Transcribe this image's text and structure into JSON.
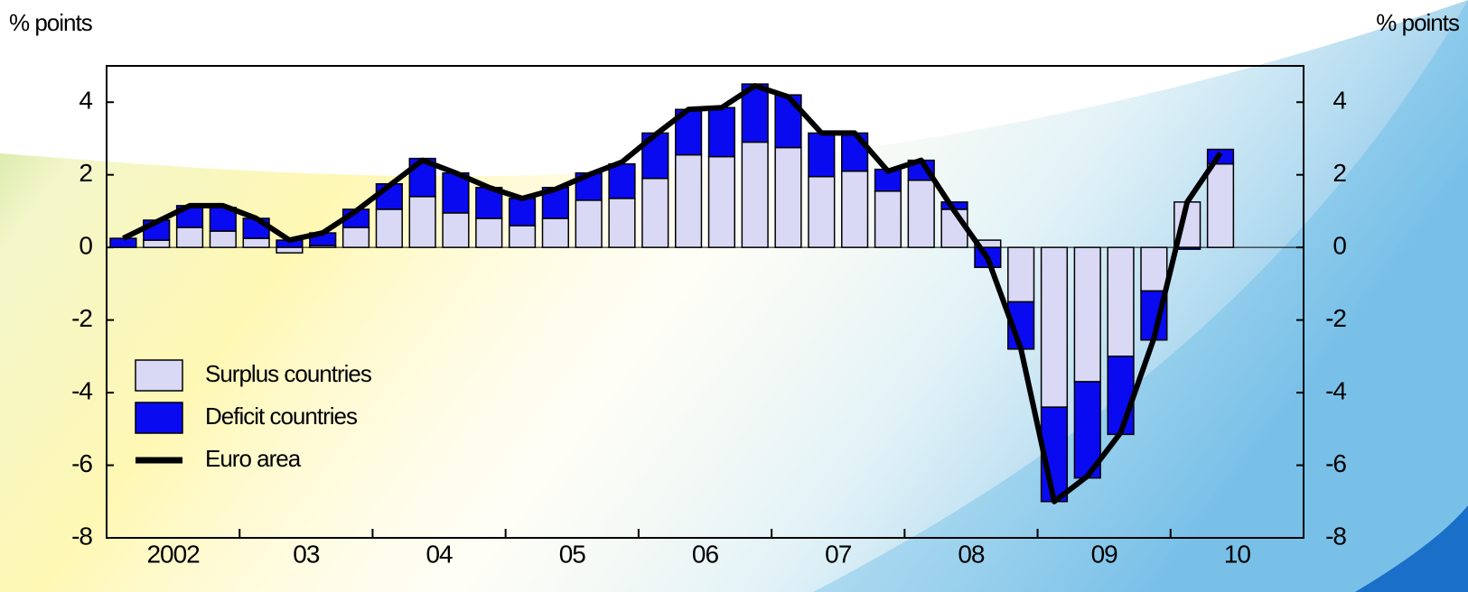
{
  "chart_data": {
    "type": "bar",
    "stacked": true,
    "y_axis_label": "% points",
    "y2_axis_label": "% points",
    "categories": [
      "2002",
      null,
      null,
      null,
      "03",
      null,
      null,
      null,
      "04",
      null,
      null,
      null,
      "05",
      null,
      null,
      null,
      "06",
      null,
      null,
      null,
      "07",
      null,
      null,
      null,
      "08",
      null,
      null,
      null,
      "09",
      null,
      null,
      null,
      "10",
      null,
      null,
      null
    ],
    "series": [
      {
        "name": "Surplus countries",
        "type": "bar",
        "color": "#d9d9f6",
        "values": [
          0,
          0.2,
          0.55,
          0.45,
          0.25,
          -0.15,
          0.05,
          0.55,
          1.05,
          1.4,
          0.95,
          0.8,
          0.6,
          0.8,
          1.3,
          1.35,
          1.9,
          2.55,
          2.5,
          2.9,
          2.75,
          1.95,
          2.1,
          1.55,
          1.85,
          1.05,
          0.2,
          -1.5,
          -4.4,
          -3.7,
          -3.0,
          -1.2,
          1.25,
          2.3,
          null,
          null
        ]
      },
      {
        "name": "Deficit countries",
        "type": "bar",
        "color": "#0a0af0",
        "values": [
          0.25,
          0.55,
          0.6,
          0.65,
          0.55,
          0.2,
          0.35,
          0.5,
          0.7,
          1.05,
          1.1,
          0.85,
          0.75,
          0.85,
          0.75,
          0.95,
          1.25,
          1.25,
          1.35,
          1.6,
          1.45,
          1.2,
          1.05,
          0.6,
          0.55,
          0.2,
          -0.55,
          -1.3,
          -2.6,
          -2.65,
          -2.15,
          -1.35,
          -0.05,
          0.4,
          null,
          null
        ]
      },
      {
        "name": "Euro area",
        "type": "line",
        "color": "#000000",
        "values": [
          0.25,
          0.7,
          1.15,
          1.15,
          0.8,
          0.2,
          0.4,
          1.0,
          1.7,
          2.4,
          2.05,
          1.65,
          1.35,
          1.6,
          2.0,
          2.35,
          3.1,
          3.8,
          3.85,
          4.45,
          4.15,
          3.15,
          3.15,
          2.1,
          2.4,
          1.0,
          -0.3,
          -2.8,
          -7.0,
          -6.3,
          -5.1,
          -2.5,
          1.25,
          2.6,
          null,
          null
        ]
      }
    ],
    "ylim": [
      -8,
      5
    ],
    "yticks": [
      -8,
      -6,
      -4,
      -2,
      0,
      2,
      4
    ],
    "y2lim": [
      -8,
      5
    ],
    "y2ticks": [
      -8,
      -6,
      -4,
      -2,
      0,
      2,
      4
    ],
    "legend": "lower left"
  }
}
